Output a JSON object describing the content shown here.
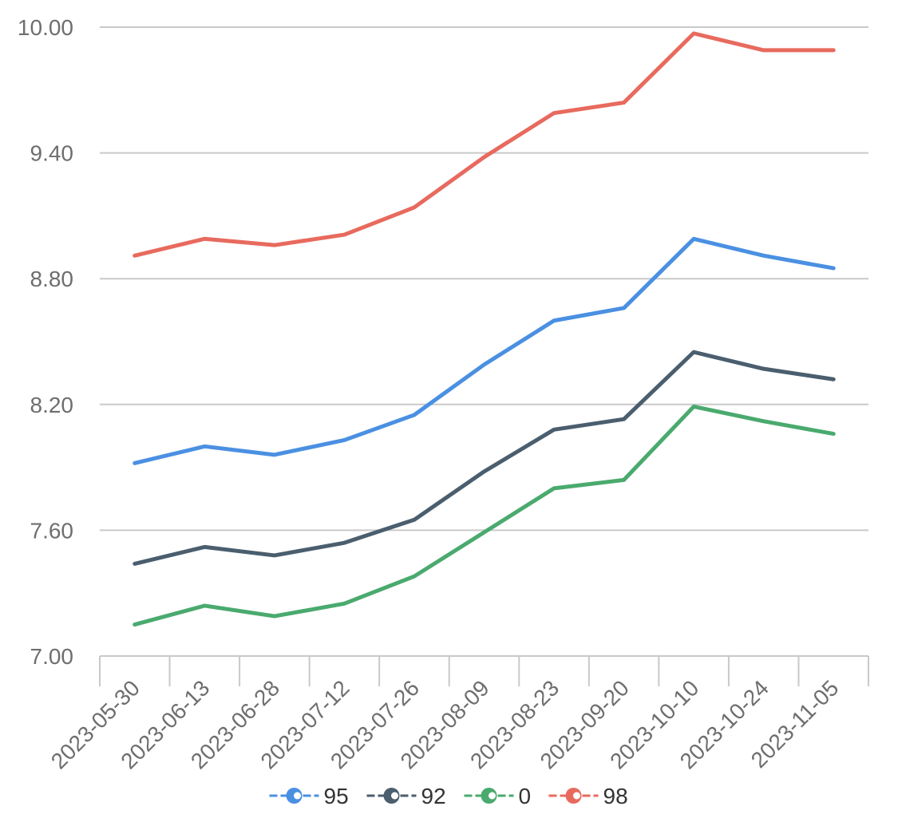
{
  "chart_data": {
    "type": "line",
    "title": "",
    "xlabel": "",
    "ylabel": "",
    "ylim": [
      7.0,
      10.0
    ],
    "yticks": [
      "7.00",
      "7.60",
      "8.20",
      "8.80",
      "9.40",
      "10.00"
    ],
    "grid": true,
    "legend_position": "bottom-center",
    "categories": [
      "2023-05-30",
      "2023-06-13",
      "2023-06-28",
      "2023-07-12",
      "2023-07-26",
      "2023-08-09",
      "2023-08-23",
      "2023-09-20",
      "2023-10-10",
      "2023-10-24",
      "2023-11-05"
    ],
    "series": [
      {
        "name": "95",
        "color": "#4a90e2",
        "values": [
          7.92,
          8.0,
          7.96,
          8.03,
          8.15,
          8.39,
          8.6,
          8.66,
          8.99,
          8.91,
          8.85
        ]
      },
      {
        "name": "92",
        "color": "#4a5e6e",
        "values": [
          7.44,
          7.52,
          7.48,
          7.54,
          7.65,
          7.88,
          8.08,
          8.13,
          8.45,
          8.37,
          8.32
        ]
      },
      {
        "name": "0",
        "color": "#4aaa6e",
        "values": [
          7.15,
          7.24,
          7.19,
          7.25,
          7.38,
          7.59,
          7.8,
          7.84,
          8.19,
          8.12,
          8.06
        ]
      },
      {
        "name": "98",
        "color": "#e86a5e",
        "values": [
          8.91,
          8.99,
          8.96,
          9.01,
          9.14,
          9.38,
          9.59,
          9.64,
          9.97,
          9.89,
          9.89
        ]
      }
    ]
  }
}
